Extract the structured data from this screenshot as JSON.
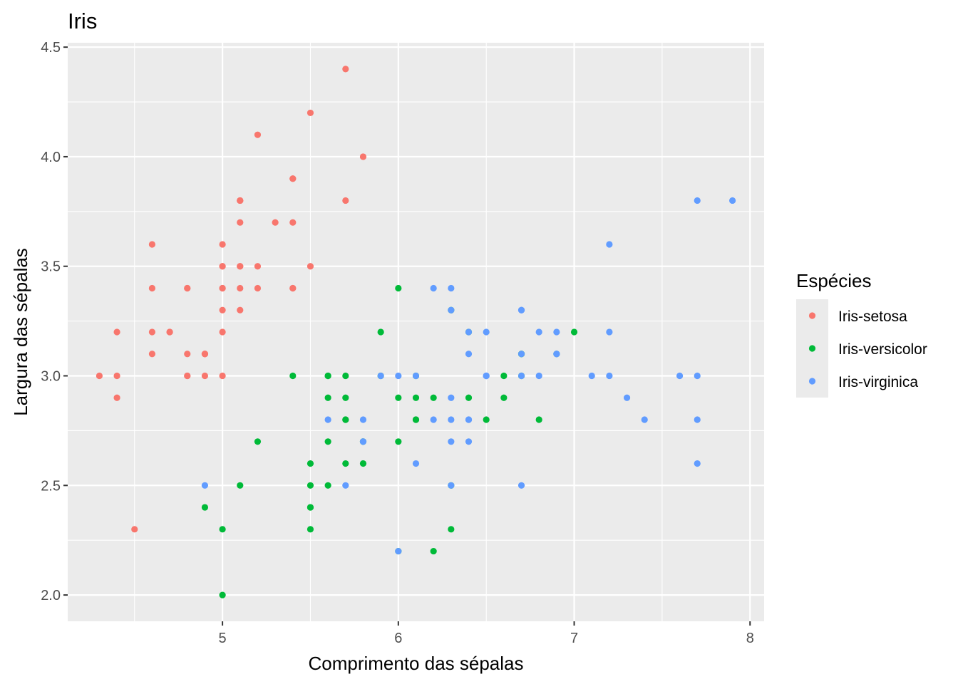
{
  "chart_data": {
    "type": "scatter",
    "title": "Iris",
    "xlabel": "Comprimento das sépalas",
    "ylabel": "Largura das sépalas",
    "xlim": [
      4.12,
      8.08
    ],
    "ylim": [
      1.88,
      4.52
    ],
    "x_ticks": [
      5,
      6,
      7,
      8
    ],
    "x_tick_labels": [
      "5",
      "6",
      "7",
      "8"
    ],
    "y_ticks": [
      2.0,
      2.5,
      3.0,
      3.5,
      4.0,
      4.5
    ],
    "y_tick_labels": [
      "2.0",
      "2.5",
      "3.0",
      "3.5",
      "4.0",
      "4.5"
    ],
    "grid": true,
    "legend": {
      "title": "Espécies",
      "position": "right"
    },
    "series": [
      {
        "name": "Iris-setosa",
        "color": "#F8766D",
        "points": [
          [
            5.1,
            3.5
          ],
          [
            4.9,
            3.0
          ],
          [
            4.7,
            3.2
          ],
          [
            4.6,
            3.1
          ],
          [
            5.0,
            3.6
          ],
          [
            5.4,
            3.9
          ],
          [
            4.6,
            3.4
          ],
          [
            5.0,
            3.4
          ],
          [
            4.4,
            2.9
          ],
          [
            4.9,
            3.1
          ],
          [
            5.4,
            3.7
          ],
          [
            4.8,
            3.4
          ],
          [
            4.8,
            3.0
          ],
          [
            4.3,
            3.0
          ],
          [
            5.8,
            4.0
          ],
          [
            5.7,
            4.4
          ],
          [
            5.4,
            3.9
          ],
          [
            5.1,
            3.5
          ],
          [
            5.7,
            3.8
          ],
          [
            5.1,
            3.8
          ],
          [
            5.4,
            3.4
          ],
          [
            5.1,
            3.7
          ],
          [
            4.6,
            3.6
          ],
          [
            5.1,
            3.3
          ],
          [
            4.8,
            3.4
          ],
          [
            5.0,
            3.0
          ],
          [
            5.0,
            3.4
          ],
          [
            5.2,
            3.5
          ],
          [
            5.2,
            3.4
          ],
          [
            4.7,
            3.2
          ],
          [
            4.8,
            3.1
          ],
          [
            5.4,
            3.4
          ],
          [
            5.2,
            4.1
          ],
          [
            5.5,
            4.2
          ],
          [
            4.9,
            3.1
          ],
          [
            5.0,
            3.2
          ],
          [
            5.5,
            3.5
          ],
          [
            4.9,
            3.1
          ],
          [
            4.4,
            3.0
          ],
          [
            5.1,
            3.4
          ],
          [
            5.0,
            3.5
          ],
          [
            4.5,
            2.3
          ],
          [
            4.4,
            3.2
          ],
          [
            5.0,
            3.5
          ],
          [
            5.1,
            3.8
          ],
          [
            4.8,
            3.0
          ],
          [
            5.1,
            3.8
          ],
          [
            4.6,
            3.2
          ],
          [
            5.3,
            3.7
          ],
          [
            5.0,
            3.3
          ]
        ]
      },
      {
        "name": "Iris-versicolor",
        "color": "#00BA38",
        "points": [
          [
            7.0,
            3.2
          ],
          [
            6.4,
            3.2
          ],
          [
            6.9,
            3.1
          ],
          [
            5.5,
            2.3
          ],
          [
            6.5,
            2.8
          ],
          [
            5.7,
            2.8
          ],
          [
            6.3,
            3.3
          ],
          [
            4.9,
            2.4
          ],
          [
            6.6,
            2.9
          ],
          [
            5.2,
            2.7
          ],
          [
            5.0,
            2.0
          ],
          [
            5.9,
            3.0
          ],
          [
            6.0,
            2.2
          ],
          [
            6.1,
            2.9
          ],
          [
            5.6,
            2.9
          ],
          [
            6.7,
            3.1
          ],
          [
            5.6,
            3.0
          ],
          [
            5.8,
            2.7
          ],
          [
            6.2,
            2.2
          ],
          [
            5.6,
            2.5
          ],
          [
            5.9,
            3.2
          ],
          [
            6.1,
            2.8
          ],
          [
            6.3,
            2.5
          ],
          [
            6.1,
            2.8
          ],
          [
            6.4,
            2.9
          ],
          [
            6.6,
            3.0
          ],
          [
            6.8,
            2.8
          ],
          [
            6.7,
            3.0
          ],
          [
            6.0,
            2.9
          ],
          [
            5.7,
            2.6
          ],
          [
            5.5,
            2.4
          ],
          [
            5.5,
            2.4
          ],
          [
            5.8,
            2.7
          ],
          [
            6.0,
            2.7
          ],
          [
            5.4,
            3.0
          ],
          [
            6.0,
            3.4
          ],
          [
            6.7,
            3.1
          ],
          [
            6.3,
            2.3
          ],
          [
            5.6,
            3.0
          ],
          [
            5.5,
            2.5
          ],
          [
            5.5,
            2.6
          ],
          [
            6.1,
            3.0
          ],
          [
            5.8,
            2.6
          ],
          [
            5.0,
            2.3
          ],
          [
            5.6,
            2.7
          ],
          [
            5.7,
            3.0
          ],
          [
            5.7,
            2.9
          ],
          [
            6.2,
            2.9
          ],
          [
            5.1,
            2.5
          ],
          [
            5.7,
            2.8
          ]
        ]
      },
      {
        "name": "Iris-virginica",
        "color": "#619CFF",
        "points": [
          [
            6.3,
            3.3
          ],
          [
            5.8,
            2.7
          ],
          [
            7.1,
            3.0
          ],
          [
            6.3,
            2.9
          ],
          [
            6.5,
            3.0
          ],
          [
            7.6,
            3.0
          ],
          [
            4.9,
            2.5
          ],
          [
            7.3,
            2.9
          ],
          [
            6.7,
            2.5
          ],
          [
            7.2,
            3.6
          ],
          [
            6.5,
            3.2
          ],
          [
            6.4,
            2.7
          ],
          [
            6.8,
            3.0
          ],
          [
            5.7,
            2.5
          ],
          [
            5.8,
            2.8
          ],
          [
            6.4,
            3.2
          ],
          [
            6.5,
            3.0
          ],
          [
            7.7,
            3.8
          ],
          [
            7.7,
            2.6
          ],
          [
            6.0,
            2.2
          ],
          [
            6.9,
            3.2
          ],
          [
            5.6,
            2.8
          ],
          [
            7.7,
            2.8
          ],
          [
            6.3,
            2.7
          ],
          [
            6.7,
            3.3
          ],
          [
            7.2,
            3.2
          ],
          [
            6.2,
            2.8
          ],
          [
            6.1,
            3.0
          ],
          [
            6.4,
            2.8
          ],
          [
            7.2,
            3.0
          ],
          [
            7.4,
            2.8
          ],
          [
            7.9,
            3.8
          ],
          [
            6.4,
            2.8
          ],
          [
            6.3,
            2.8
          ],
          [
            6.1,
            2.6
          ],
          [
            7.7,
            3.0
          ],
          [
            6.3,
            3.4
          ],
          [
            6.4,
            3.1
          ],
          [
            6.0,
            3.0
          ],
          [
            6.9,
            3.1
          ],
          [
            6.7,
            3.1
          ],
          [
            6.9,
            3.1
          ],
          [
            5.8,
            2.7
          ],
          [
            6.8,
            3.2
          ],
          [
            6.7,
            3.3
          ],
          [
            6.7,
            3.0
          ],
          [
            6.3,
            2.5
          ],
          [
            6.5,
            3.0
          ],
          [
            6.2,
            3.4
          ],
          [
            5.9,
            3.0
          ]
        ]
      }
    ]
  }
}
